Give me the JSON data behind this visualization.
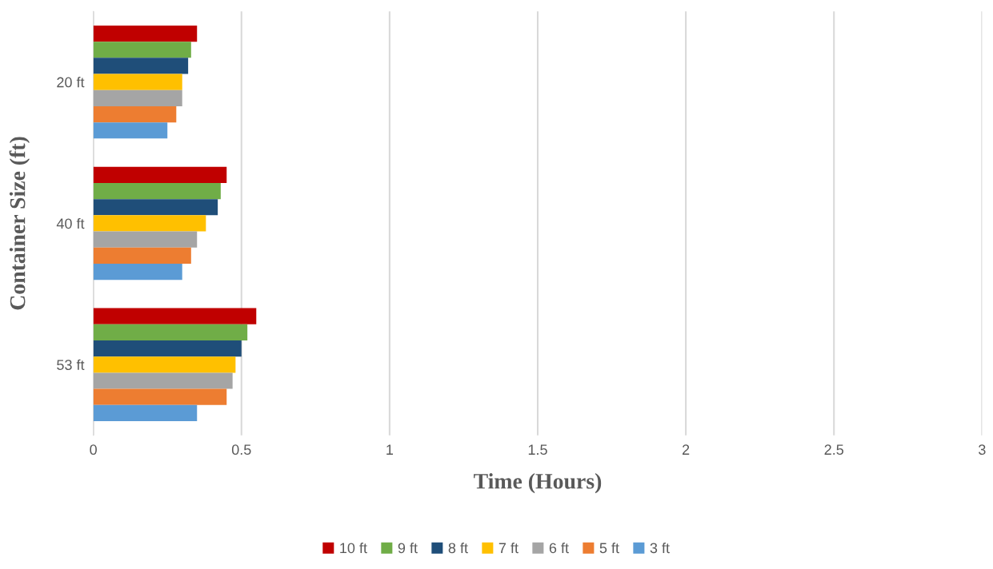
{
  "chart_data": {
    "type": "bar",
    "orientation": "horizontal",
    "xlabel": "Time (Hours)",
    "ylabel": "Container Size (ft)",
    "categories": [
      "20 ft",
      "40 ft",
      "53 ft"
    ],
    "series": [
      {
        "name": "10 ft",
        "color": "#c00000",
        "values": [
          0.35,
          0.45,
          0.55
        ]
      },
      {
        "name": "9 ft",
        "color": "#70ad47",
        "values": [
          0.33,
          0.43,
          0.52
        ]
      },
      {
        "name": "8 ft",
        "color": "#1f4e79",
        "values": [
          0.32,
          0.42,
          0.5
        ]
      },
      {
        "name": "7 ft",
        "color": "#ffc000",
        "values": [
          0.3,
          0.38,
          0.48
        ]
      },
      {
        "name": "6 ft",
        "color": "#a5a5a5",
        "values": [
          0.3,
          0.35,
          0.47
        ]
      },
      {
        "name": "5 ft",
        "color": "#ed7d31",
        "values": [
          0.28,
          0.33,
          0.45
        ]
      },
      {
        "name": "3 ft",
        "color": "#5b9bd5",
        "values": [
          0.25,
          0.3,
          0.35
        ]
      }
    ],
    "xlim": [
      0,
      3
    ],
    "xticks": [
      0,
      0.5,
      1,
      1.5,
      2,
      2.5,
      3
    ],
    "grid": "x",
    "legend": "bottom"
  }
}
